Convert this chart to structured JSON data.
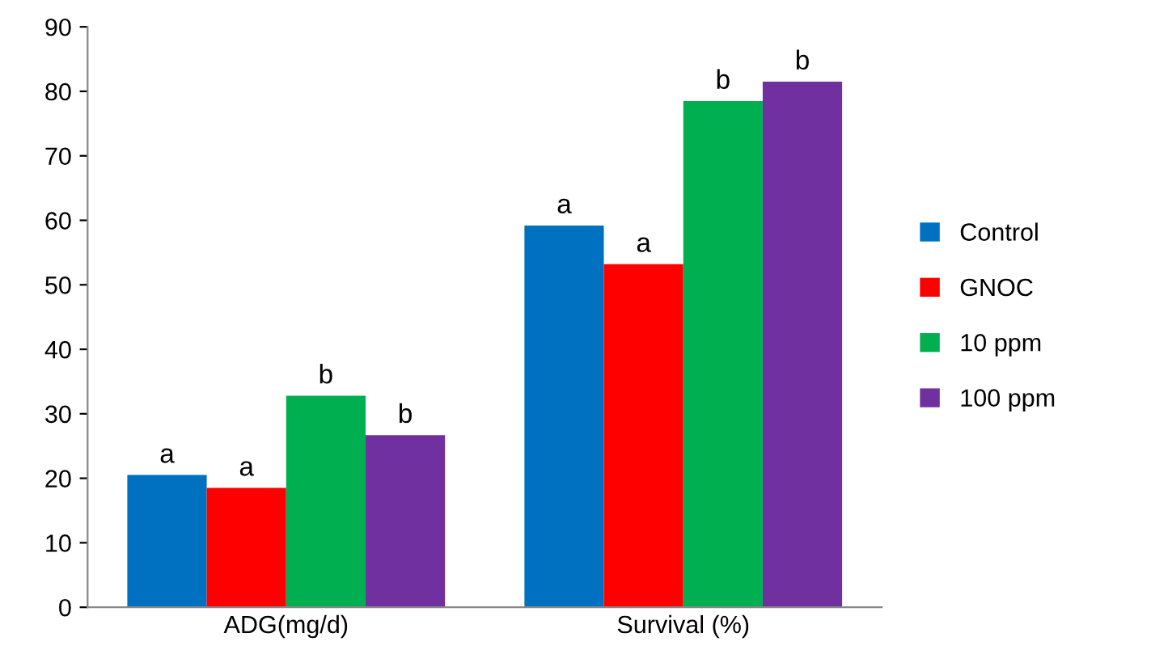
{
  "chart_data": {
    "type": "bar",
    "categories": [
      "ADG(mg/d)",
      "Survival (%)"
    ],
    "series": [
      {
        "name": "Control",
        "color": "#0070c0",
        "values": [
          20.5,
          59.2
        ]
      },
      {
        "name": "GNOC",
        "color": "#ff0000",
        "values": [
          18.5,
          53.2
        ]
      },
      {
        "name": "10 ppm",
        "color": "#00b050",
        "values": [
          32.8,
          78.5
        ]
      },
      {
        "name": "100 ppm",
        "color": "#7030a0",
        "values": [
          26.7,
          81.5
        ]
      }
    ],
    "ylim": [
      0,
      90
    ],
    "yticks": [
      0,
      10,
      20,
      30,
      40,
      50,
      60,
      70,
      80,
      90
    ],
    "grid": false,
    "legend": "right",
    "annotations": [
      "a",
      "a",
      "b",
      "b",
      "a",
      "a",
      "b",
      "b"
    ]
  }
}
